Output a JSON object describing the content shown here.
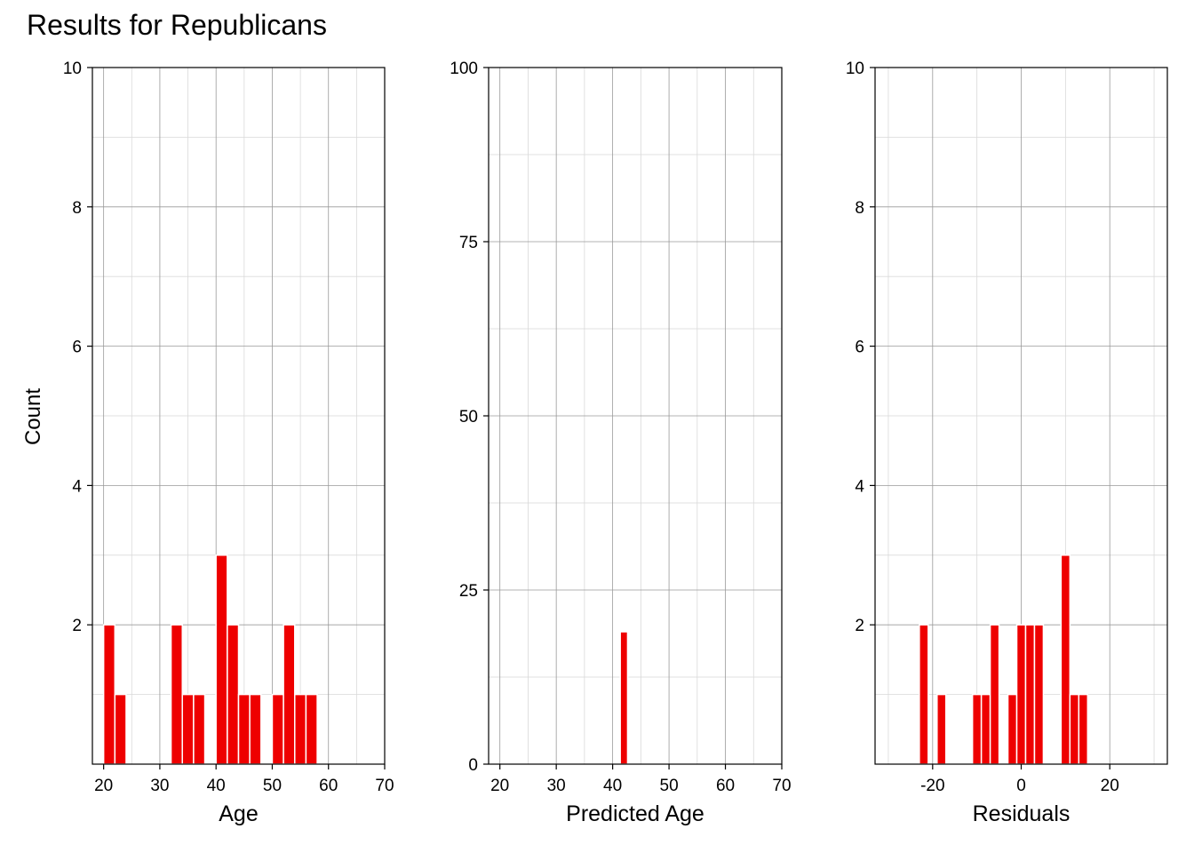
{
  "title": "Results for Republicans",
  "shared_ylabel": "Count",
  "bar_color": "#ee0000",
  "grid_major_color": "#9a9a9a",
  "grid_minor_color": "#d9d9d9",
  "chart_data": [
    {
      "type": "bar",
      "xlabel": "Age",
      "ylabel": "Count",
      "xlim": [
        18,
        70
      ],
      "ylim": [
        0,
        10
      ],
      "xticks": [
        20,
        30,
        40,
        50,
        60,
        70
      ],
      "xtick_labels": [
        "20",
        "30",
        "40",
        "50",
        "60",
        "70"
      ],
      "yticks": [
        2,
        4,
        6,
        8,
        10
      ],
      "ytick_labels": [
        "2",
        "4",
        "6",
        "8",
        "10"
      ],
      "bin_width": 2,
      "bins": [
        {
          "x": 21,
          "count": 2
        },
        {
          "x": 23,
          "count": 1
        },
        {
          "x": 33,
          "count": 2
        },
        {
          "x": 35,
          "count": 1
        },
        {
          "x": 37,
          "count": 1
        },
        {
          "x": 41,
          "count": 3
        },
        {
          "x": 43,
          "count": 2
        },
        {
          "x": 45,
          "count": 1
        },
        {
          "x": 47,
          "count": 1
        },
        {
          "x": 51,
          "count": 1
        },
        {
          "x": 53,
          "count": 2
        },
        {
          "x": 55,
          "count": 1
        },
        {
          "x": 57,
          "count": 1
        }
      ],
      "grid": true
    },
    {
      "type": "bar",
      "xlabel": "Predicted Age",
      "ylabel": "Count",
      "xlim": [
        18,
        70
      ],
      "ylim": [
        0,
        100
      ],
      "xticks": [
        20,
        30,
        40,
        50,
        60,
        70
      ],
      "xtick_labels": [
        "20",
        "30",
        "40",
        "50",
        "60",
        "70"
      ],
      "yticks": [
        0,
        25,
        50,
        75,
        100
      ],
      "ytick_labels": [
        "0",
        "25",
        "50",
        "75",
        "100"
      ],
      "bin_width": 1.3,
      "bins": [
        {
          "x": 42,
          "count": 19
        }
      ],
      "grid": true
    },
    {
      "type": "bar",
      "xlabel": "Residuals",
      "ylabel": "Count",
      "xlim": [
        -33,
        33
      ],
      "ylim": [
        0,
        10
      ],
      "xticks": [
        -20,
        0,
        20
      ],
      "xtick_labels": [
        "-20",
        "0",
        "20"
      ],
      "yticks": [
        2,
        4,
        6,
        8,
        10
      ],
      "ytick_labels": [
        "2",
        "4",
        "6",
        "8",
        "10"
      ],
      "bin_width": 2,
      "bins": [
        {
          "x": -22,
          "count": 2
        },
        {
          "x": -18,
          "count": 1
        },
        {
          "x": -10,
          "count": 1
        },
        {
          "x": -8,
          "count": 1
        },
        {
          "x": -6,
          "count": 2
        },
        {
          "x": -2,
          "count": 1
        },
        {
          "x": 0,
          "count": 2
        },
        {
          "x": 2,
          "count": 2
        },
        {
          "x": 4,
          "count": 2
        },
        {
          "x": 10,
          "count": 3
        },
        {
          "x": 12,
          "count": 1
        },
        {
          "x": 14,
          "count": 1
        }
      ],
      "grid": true
    }
  ]
}
